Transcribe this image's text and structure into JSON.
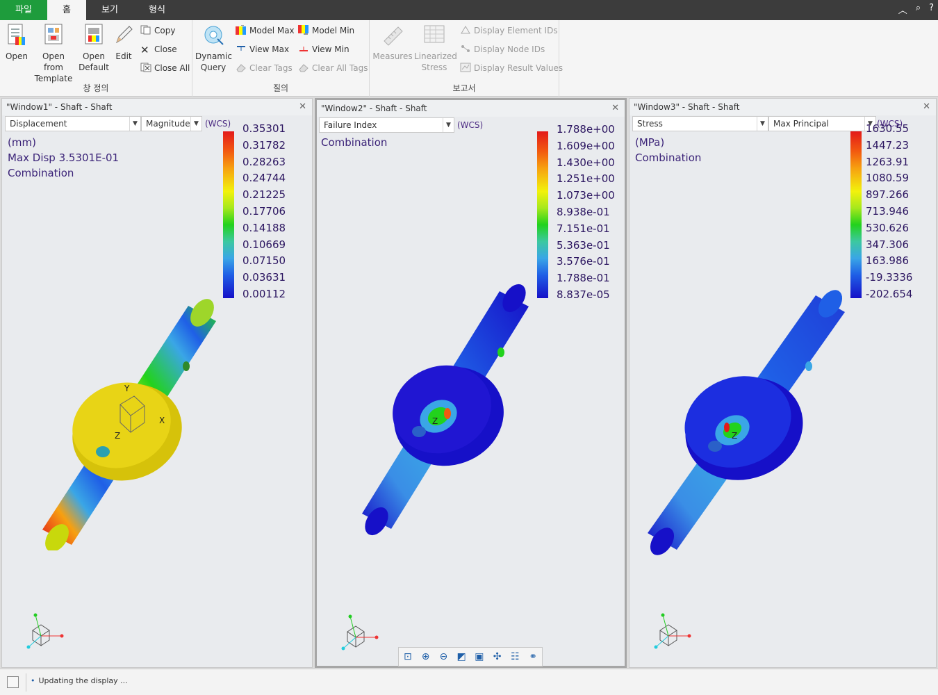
{
  "tabs": {
    "file": "파일",
    "home": "홈",
    "view": "보기",
    "format": "형식"
  },
  "titlebar_icons": [
    "collapse-ribbon-icon",
    "search-icon",
    "help-icon"
  ],
  "ribbon": {
    "group_window": {
      "label": "창 정의",
      "open": "Open",
      "open_from_template_1": "Open from",
      "open_from_template_2": "Template",
      "open_default_1": "Open",
      "open_default_2": "Default",
      "edit": "Edit",
      "copy": "Copy",
      "close": "Close",
      "close_all": "Close All"
    },
    "group_query": {
      "label": "질의",
      "dynamic_query_1": "Dynamic",
      "dynamic_query_2": "Query",
      "model_max": "Model Max",
      "model_min": "Model Min",
      "view_max": "View Max",
      "view_min": "View Min",
      "clear_tags": "Clear Tags",
      "clear_all_tags": "Clear All Tags"
    },
    "group_report": {
      "label": "보고서",
      "measures": "Measures",
      "linearized_stress_1": "Linearized",
      "linearized_stress_2": "Stress",
      "display_element_ids": "Display Element IDs",
      "display_node_ids": "Display Node IDs",
      "display_result_values": "Display Result Values"
    }
  },
  "windows": [
    {
      "title": "\"Window1\" - Shaft - Shaft",
      "quantity": "Displacement",
      "component": "Magnitude",
      "wcs": "(WCS)",
      "info": [
        "(mm)",
        "Max Disp   3.5301E-01",
        "Combination"
      ],
      "legend": [
        "0.35301",
        "0.31782",
        "0.28263",
        "0.24744",
        "0.21225",
        "0.17706",
        "0.14188",
        "0.10669",
        "0.07150",
        "0.03631",
        "0.00112"
      ],
      "triad_labels": {
        "x": "X",
        "y": "Y",
        "z": "Z"
      }
    },
    {
      "title": "\"Window2\" - Shaft - Shaft",
      "quantity": "Failure Index",
      "wcs": "(WCS)",
      "info": [
        "Combination"
      ],
      "legend": [
        "1.788e+00",
        "1.609e+00",
        "1.430e+00",
        "1.251e+00",
        "1.073e+00",
        "8.938e-01",
        "7.151e-01",
        "5.363e-01",
        "3.576e-01",
        "1.788e-01",
        "8.837e-05"
      ],
      "triad_labels": {
        "x": "",
        "y": "",
        "z": "Z"
      },
      "toolbar_icons": [
        "refit-icon",
        "zoom-in-icon",
        "zoom-out-icon",
        "pan-zoom-icon",
        "saved-views-icon",
        "spin-center-icon",
        "view-manager-icon",
        "display-style-icon"
      ]
    },
    {
      "title": "\"Window3\" - Shaft - Shaft",
      "quantity": "Stress",
      "component": "Max Principal",
      "wcs": "(WCS)",
      "info": [
        "(MPa)",
        "Combination"
      ],
      "legend": [
        "1630.55",
        "1447.23",
        "1263.91",
        "1080.59",
        "897.266",
        "713.946",
        "530.626",
        "347.306",
        "163.986",
        "-19.3336",
        "-202.654"
      ],
      "triad_labels": {
        "x": "",
        "y": "",
        "z": "Z"
      }
    }
  ],
  "status": {
    "message": "Updating the display ..."
  },
  "colors": {
    "file_tab": "#1e9c3c",
    "title_bar": "#3c3c3c",
    "legend_text": "#2b1560"
  }
}
